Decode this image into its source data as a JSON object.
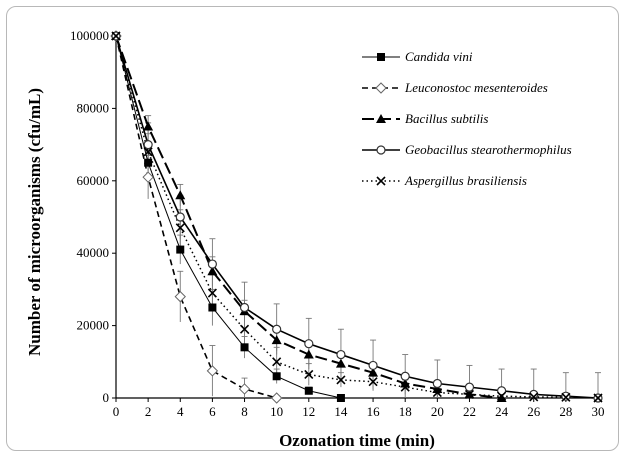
{
  "chart_data": {
    "type": "line",
    "xlabel": "Ozonation time (min)",
    "ylabel": "Number of microorganisms (cfu/mL)",
    "x": [
      0,
      2,
      4,
      6,
      8,
      10,
      12,
      14,
      16,
      18,
      20,
      22,
      24,
      26,
      28,
      30
    ],
    "xlim": [
      0,
      30
    ],
    "ylim": [
      0,
      100000
    ],
    "xticks": [
      "0",
      "2",
      "4",
      "6",
      "8",
      "10",
      "12",
      "14",
      "16",
      "18",
      "20",
      "22",
      "24",
      "26",
      "28",
      "30"
    ],
    "yticks": [
      "0",
      "20000",
      "40000",
      "60000",
      "80000",
      "100000"
    ],
    "grid": false,
    "legend_position": "top-right",
    "series": [
      {
        "name": "Candida vini",
        "marker": "filled-square",
        "line": "solid-thin",
        "x": [
          0,
          2,
          4,
          6,
          8,
          10,
          12,
          14
        ],
        "values": [
          100000,
          65000,
          41000,
          25000,
          14000,
          6000,
          2000,
          0
        ],
        "errors": [
          0,
          3000,
          4000,
          5000,
          3000,
          2000,
          1000,
          0
        ]
      },
      {
        "name": "Leuconostoc mesenteroides",
        "marker": "open-diamond",
        "line": "dashed",
        "x": [
          0,
          2,
          4,
          6,
          8,
          10
        ],
        "values": [
          100000,
          61000,
          28000,
          7500,
          2500,
          0
        ],
        "errors": [
          0,
          6000,
          7000,
          7000,
          3000,
          0
        ]
      },
      {
        "name": "Bacillus subtilis",
        "marker": "filled-triangle",
        "line": "long-dash",
        "x": [
          0,
          2,
          4,
          6,
          8,
          10,
          12,
          14,
          16,
          18,
          20,
          22,
          24
        ],
        "values": [
          100000,
          75000,
          56000,
          35000,
          24000,
          16000,
          12000,
          9500,
          7000,
          4000,
          2500,
          1000,
          0
        ],
        "errors": [
          0,
          3000,
          3000,
          4000,
          3000,
          3000,
          3000,
          3000,
          2000,
          2000,
          2000,
          1000,
          0
        ]
      },
      {
        "name": "Geobacillus stearothermophilus",
        "marker": "open-circle",
        "line": "solid",
        "x": [
          0,
          2,
          4,
          6,
          8,
          10,
          12,
          14,
          16,
          18,
          20,
          22,
          24,
          26,
          28,
          30
        ],
        "values": [
          100000,
          70000,
          50000,
          37000,
          25000,
          19000,
          15000,
          12000,
          9000,
          6000,
          4000,
          3000,
          2000,
          1000,
          500,
          0
        ],
        "errors": [
          0,
          6000,
          6000,
          7000,
          7000,
          7000,
          7000,
          7000,
          7000,
          6000,
          6500,
          6000,
          6000,
          7000,
          6500,
          7000
        ]
      },
      {
        "name": "Aspergillus brasiliensis",
        "marker": "x",
        "line": "dotted",
        "x": [
          0,
          2,
          4,
          6,
          8,
          10,
          12,
          14,
          16,
          18,
          20,
          22,
          24,
          26,
          28,
          30
        ],
        "values": [
          100000,
          68000,
          47000,
          29000,
          19000,
          10000,
          6500,
          5000,
          4500,
          3000,
          1500,
          1000,
          500,
          300,
          200,
          0
        ],
        "errors": [
          0,
          5000,
          5000,
          5000,
          4000,
          4000,
          3000,
          2000,
          2000,
          2000,
          1500,
          1000,
          1000,
          800,
          500,
          0
        ]
      }
    ]
  }
}
